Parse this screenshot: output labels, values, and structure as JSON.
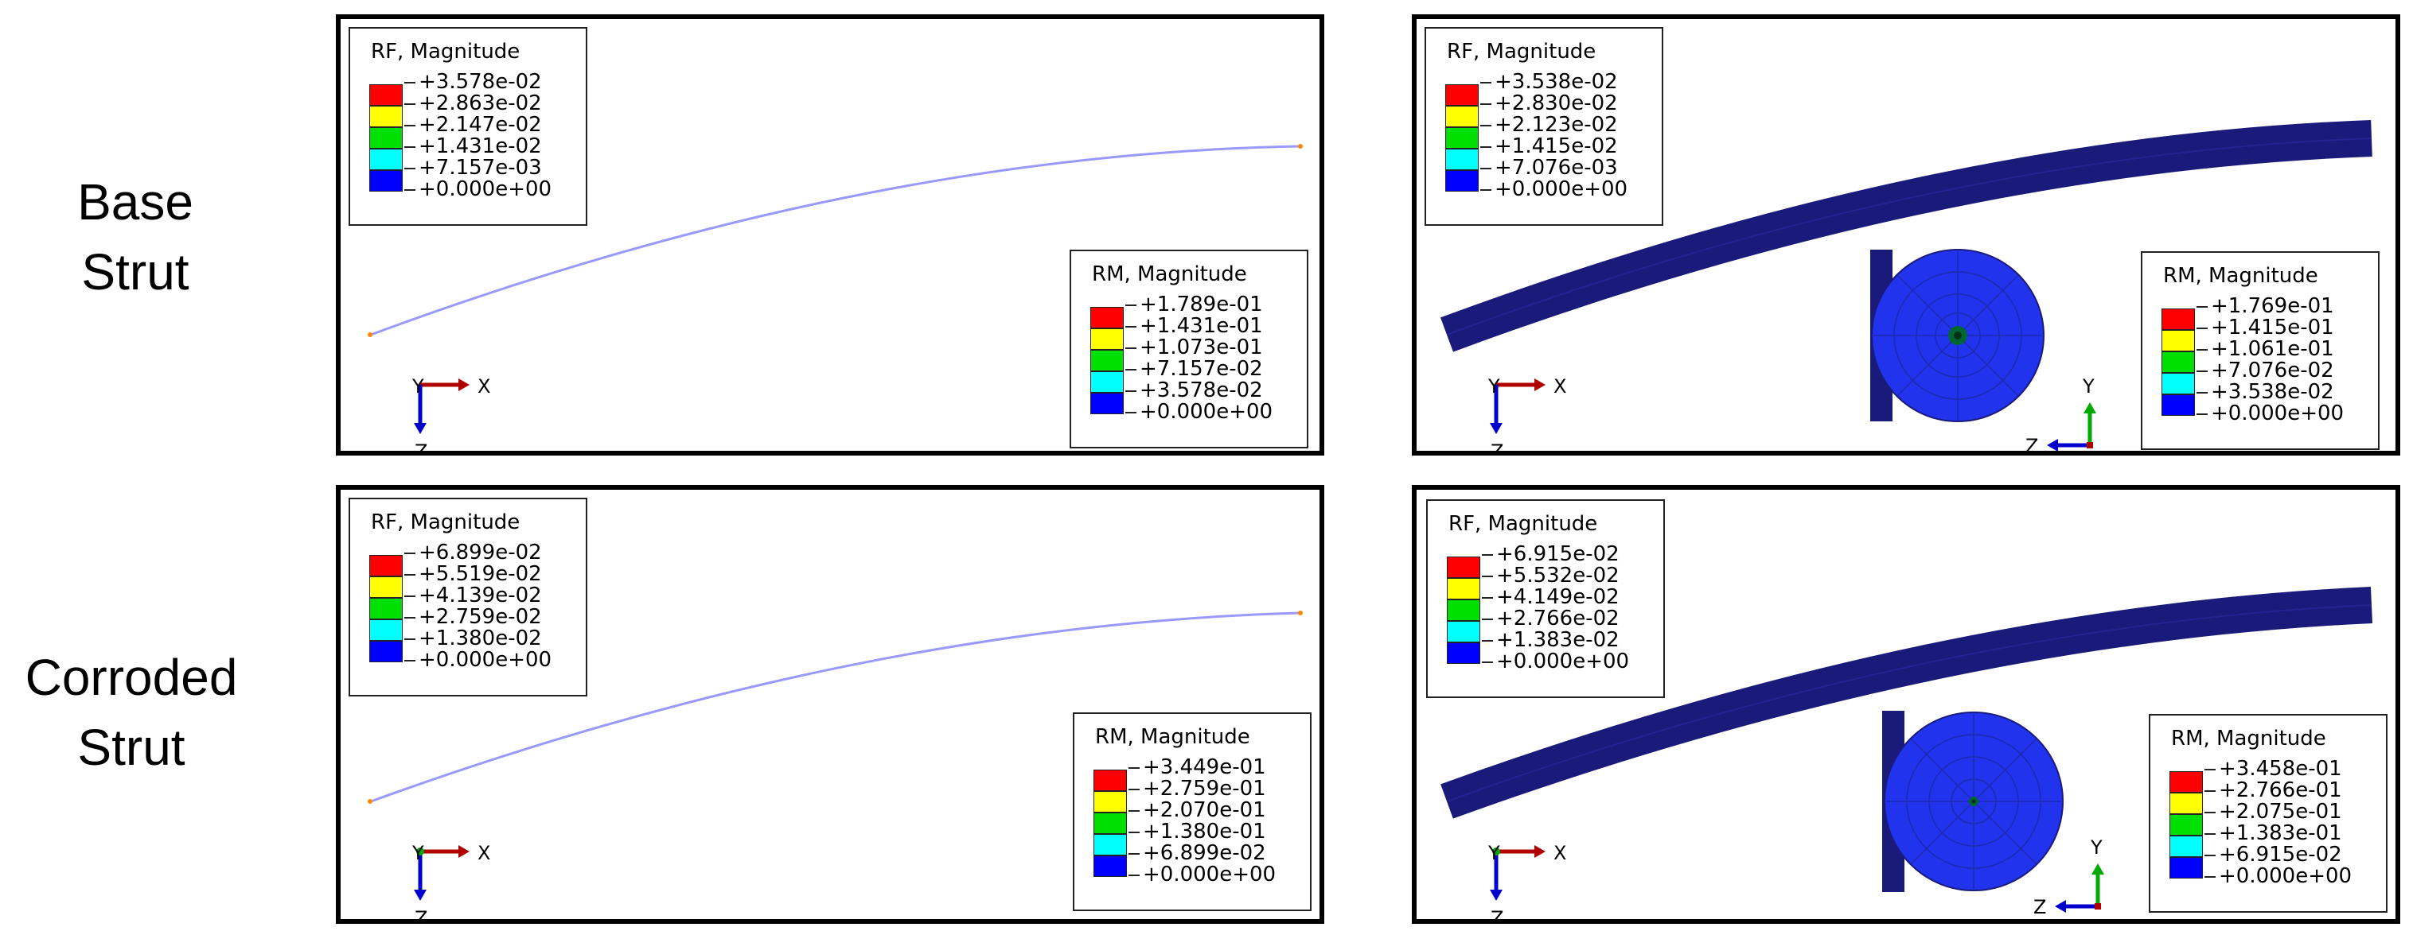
{
  "row_labels": [
    {
      "line1": "Base",
      "line2": "Strut"
    },
    {
      "line1": "Corroded",
      "line2": "Strut"
    }
  ],
  "panels": [
    {
      "rf": {
        "title": "RF, Magnitude",
        "values": [
          "+3.578e-02",
          "+2.863e-02",
          "+2.147e-02",
          "+1.431e-02",
          "+7.157e-03",
          "+0.000e+00"
        ]
      },
      "rm": {
        "title": "RM, Magnitude",
        "values": [
          "+1.789e-01",
          "+1.431e-01",
          "+1.073e-01",
          "+7.157e-02",
          "+3.578e-02",
          "+0.000e+00"
        ]
      },
      "triad": {
        "a": "Y",
        "b": "X",
        "c": "Z"
      }
    },
    {
      "rf": {
        "title": "RF, Magnitude",
        "values": [
          "+3.538e-02",
          "+2.830e-02",
          "+2.123e-02",
          "+1.415e-02",
          "+7.076e-03",
          "+0.000e+00"
        ]
      },
      "rm": {
        "title": "RM, Magnitude",
        "values": [
          "+1.769e-01",
          "+1.415e-01",
          "+1.061e-01",
          "+7.076e-02",
          "+3.538e-02",
          "+0.000e+00"
        ]
      },
      "triad": {
        "a": "Y",
        "b": "X",
        "c": "Z"
      },
      "section_triad": {
        "a": "Y",
        "b": "Z"
      }
    },
    {
      "rf": {
        "title": "RF, Magnitude",
        "values": [
          "+6.899e-02",
          "+5.519e-02",
          "+4.139e-02",
          "+2.759e-02",
          "+1.380e-02",
          "+0.000e+00"
        ]
      },
      "rm": {
        "title": "RM, Magnitude",
        "values": [
          "+3.449e-01",
          "+2.759e-01",
          "+2.070e-01",
          "+1.380e-01",
          "+6.899e-02",
          "+0.000e+00"
        ]
      },
      "triad": {
        "a": "Y",
        "b": "X",
        "c": "Z"
      }
    },
    {
      "rf": {
        "title": "RF, Magnitude",
        "values": [
          "+6.915e-02",
          "+5.532e-02",
          "+4.149e-02",
          "+2.766e-02",
          "+1.383e-02",
          "+0.000e+00"
        ]
      },
      "rm": {
        "title": "RM, Magnitude",
        "values": [
          "+3.458e-01",
          "+2.766e-01",
          "+2.075e-01",
          "+1.383e-01",
          "+6.915e-02",
          "+0.000e+00"
        ]
      },
      "triad": {
        "a": "Y",
        "b": "X",
        "c": "Z"
      },
      "section_triad": {
        "a": "Y",
        "b": "Z"
      }
    }
  ],
  "colors": {
    "scale": [
      "#ff0000",
      "#ffff00",
      "#00e000",
      "#00ffff",
      "#0000ff"
    ],
    "strut": "#1a1a7a",
    "wire": "#9999ff",
    "section": "#2233ee",
    "axis_x": "#b00000",
    "axis_y": "#00aa00",
    "axis_z": "#0000cc"
  }
}
